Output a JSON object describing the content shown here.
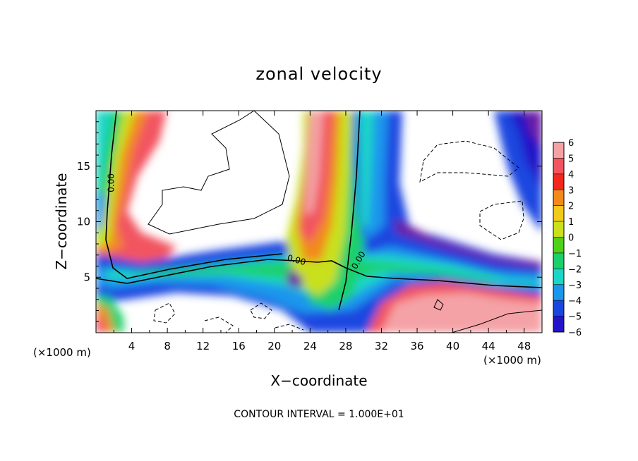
{
  "chart_data": {
    "type": "heatmap",
    "title": "zonal velocity",
    "xlabel": "X−coordinate",
    "ylabel": "Z−coordinate",
    "x_unit": "(×1000 m)",
    "z_unit": "(×1000 m)",
    "xlim": [
      0,
      50
    ],
    "ylim": [
      0,
      20
    ],
    "x_ticks": [
      4,
      8,
      12,
      16,
      20,
      24,
      28,
      32,
      36,
      40,
      44,
      48
    ],
    "y_ticks": [
      5,
      10,
      15
    ],
    "colorbar": {
      "levels": [
        6,
        5,
        4,
        3,
        2,
        1,
        0,
        -1,
        -2,
        -3,
        -4,
        -5,
        -6
      ],
      "labels": [
        "6",
        "5",
        "4",
        "3",
        "2",
        "1",
        "0",
        "−1",
        "−2",
        "−3",
        "−4",
        "−5",
        "−6"
      ],
      "colors": [
        "#f4a2a6",
        "#f25560",
        "#f2281c",
        "#f28a1a",
        "#f2ca1a",
        "#c9e01a",
        "#4fd11a",
        "#1ad06c",
        "#1ad6c6",
        "#1a96ec",
        "#1a46e0",
        "#2414c8",
        "#6a1ca6"
      ]
    },
    "contour_labels": [
      {
        "text": "0.00",
        "x": 2.0,
        "z": 13.5,
        "angle": -90
      },
      {
        "text": "0.00",
        "x": 22.4,
        "z": 6.3,
        "angle": 15
      },
      {
        "text": "0.00",
        "x": 29.7,
        "z": 6.4,
        "angle": -60
      }
    ],
    "footer": "CONTOUR INTERVAL = 1.000E+01"
  }
}
